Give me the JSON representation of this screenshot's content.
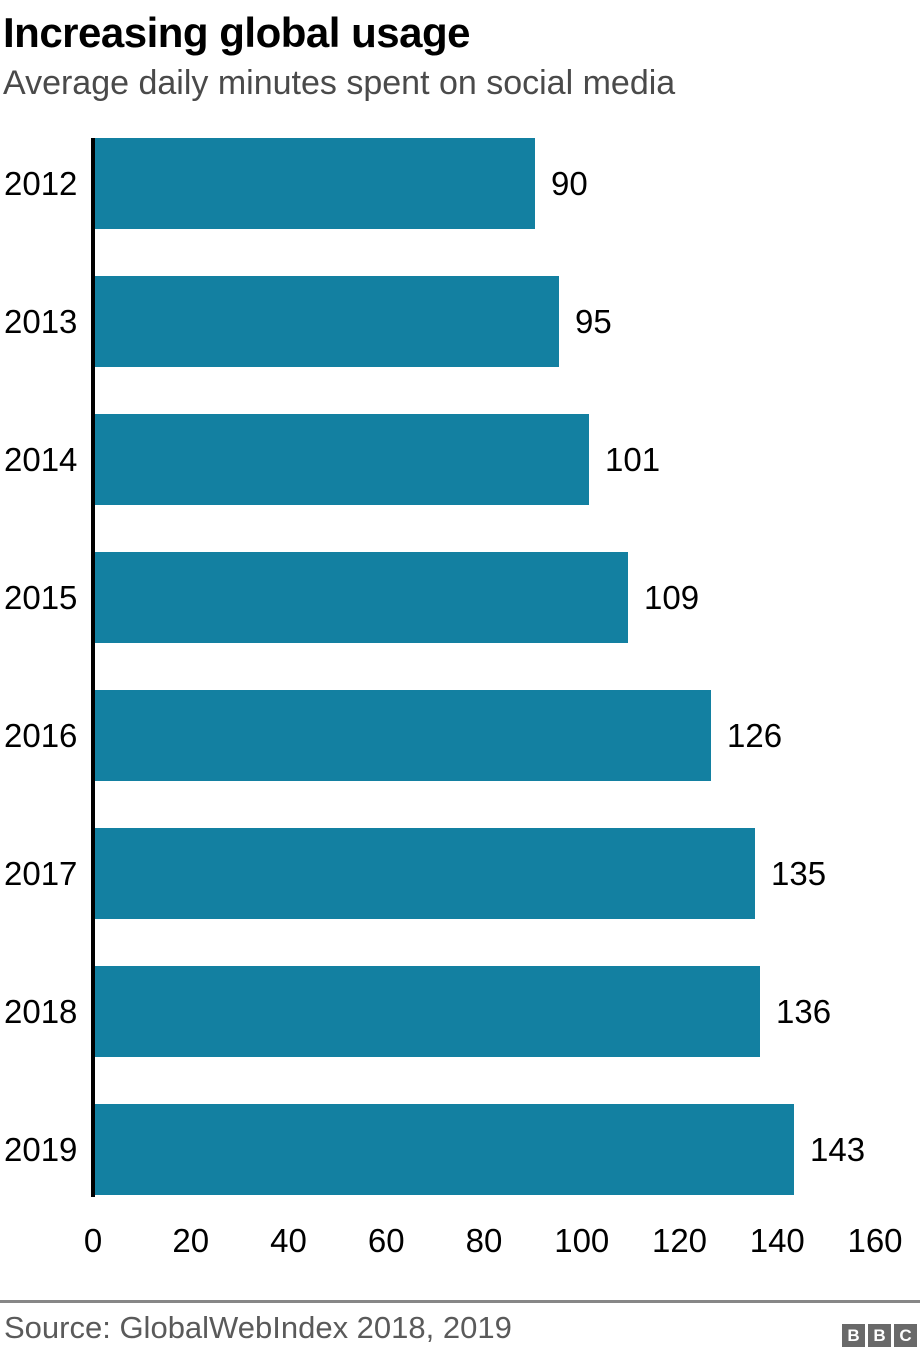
{
  "header": {
    "title": "Increasing global usage",
    "subtitle": "Average daily minutes spent on social media"
  },
  "chart_data": {
    "type": "bar",
    "orientation": "horizontal",
    "title": "Increasing global usage",
    "subtitle": "Average daily minutes spent on social media",
    "categories": [
      "2012",
      "2013",
      "2014",
      "2015",
      "2016",
      "2017",
      "2018",
      "2019"
    ],
    "values": [
      90,
      95,
      101,
      109,
      126,
      135,
      136,
      143
    ],
    "value_labels": [
      "90",
      "95",
      "101",
      "109",
      "126",
      "135",
      "136",
      "143"
    ],
    "xlabel": "",
    "ylabel": "",
    "xlim": [
      0,
      160
    ],
    "x_ticks": [
      0,
      20,
      40,
      60,
      80,
      100,
      120,
      140,
      160
    ],
    "grid": false,
    "legend": "none",
    "bar_color": "#1380A1"
  },
  "footer": {
    "source": "Source: GlobalWebIndex 2018, 2019",
    "logo_letters": [
      "B",
      "B",
      "C"
    ],
    "logo_block_color": "#696969"
  },
  "colors": {
    "bar": "#1380A1",
    "axis_line": "#000000",
    "title_text": "#000000",
    "subtitle_text": "#4a4a4a",
    "source_text": "#5a5a5a",
    "divider": "#878787"
  }
}
